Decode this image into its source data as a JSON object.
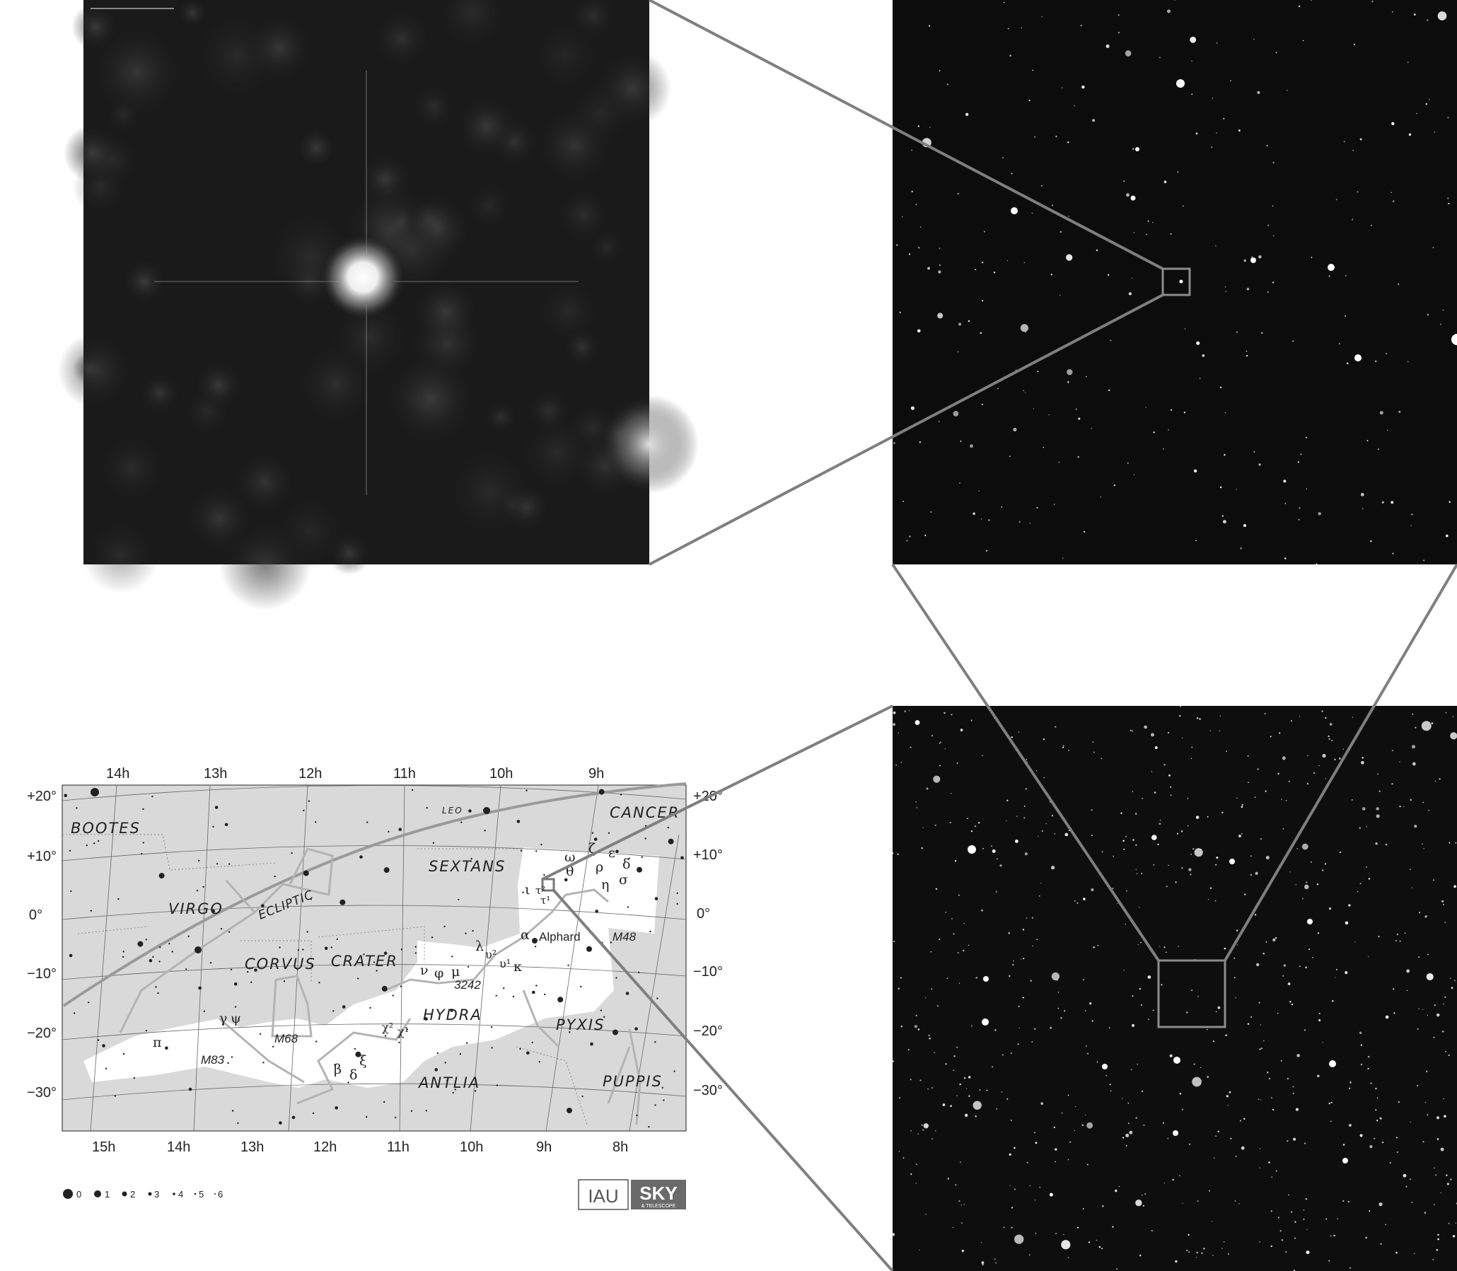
{
  "chart": {
    "ra_top": [
      "14h",
      "13h",
      "12h",
      "11h",
      "10h",
      "9h"
    ],
    "ra_bottom": [
      "15h",
      "14h",
      "13h",
      "12h",
      "11h",
      "10h",
      "9h",
      "8h"
    ],
    "dec_left": [
      "+20°",
      "+10°",
      "0°",
      "−10°",
      "−20°",
      "−30°"
    ],
    "dec_right": [
      "+20°",
      "+10°",
      "0°",
      "−10°",
      "−20°",
      "−30°"
    ],
    "constellations": [
      "BOOTES",
      "VIRGO",
      "CORVUS",
      "CRATER",
      "SEXTANS",
      "HYDRA",
      "ANTLIA",
      "PYXIS",
      "PUPPIS",
      "CANCER",
      "LEO"
    ],
    "ecliptic": "ECLIPTIC",
    "stars": [
      "ω",
      "ζ",
      "θ",
      "ρ",
      "ε",
      "δ",
      "η",
      "σ",
      "ι",
      "τ²",
      "τ¹",
      "α",
      "λ",
      "υ²",
      "υ¹",
      "κ",
      "ν",
      "φ",
      "μ",
      "χ²",
      "χ¹",
      "γ",
      "ψ",
      "π",
      "β",
      "δ",
      "ξ"
    ],
    "star_names": {
      "alphard": "Alphard"
    },
    "objects": [
      "M48",
      "3242",
      "M68",
      "M83"
    ],
    "magnitude_legend": [
      "0",
      "1",
      "2",
      "3",
      "4",
      "5",
      "6"
    ],
    "logos": {
      "iau": "IAU",
      "sky": "SKY",
      "sky_sub": "& TELESCOPE"
    }
  },
  "colors": {
    "connector": "#7f7f7f",
    "chart_bg": "#d9d9d9",
    "constellation_highlight": "#ffffff",
    "constellation_lines": "#b3b3b3",
    "grid": "#555555"
  },
  "icons": {
    "crosshair": "crosshair-icon",
    "target": "target-icon"
  }
}
